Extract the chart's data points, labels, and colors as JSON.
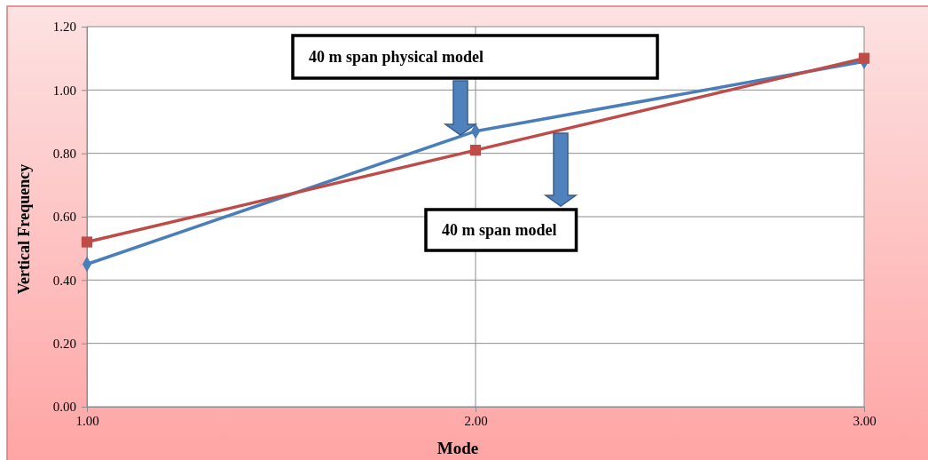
{
  "chart_data": {
    "type": "line",
    "xlabel": "Mode",
    "ylabel": "Vertical Frequency",
    "x": [
      1,
      2,
      3
    ],
    "xlim": [
      1,
      3
    ],
    "xticks": [
      {
        "value": 1,
        "label": "1.00"
      },
      {
        "value": 2,
        "label": "2.00"
      },
      {
        "value": 3,
        "label": "3.00"
      }
    ],
    "ylim": [
      0,
      1.2
    ],
    "yticks": [
      {
        "value": 0,
        "label": "0.00"
      },
      {
        "value": 0.2,
        "label": "0.20"
      },
      {
        "value": 0.4,
        "label": "0.40"
      },
      {
        "value": 0.6,
        "label": "0.60"
      },
      {
        "value": 0.8,
        "label": "0.80"
      },
      {
        "value": 1.0,
        "label": "1.00"
      },
      {
        "value": 1.2,
        "label": "1.20"
      }
    ],
    "grid": true,
    "series": [
      {
        "color": "#4a7ebb",
        "marker": "diamond",
        "values": [
          0.45,
          0.87,
          1.09
        ]
      },
      {
        "color": "#be4b48",
        "marker": "square",
        "values": [
          0.52,
          0.81,
          1.1
        ]
      }
    ],
    "annotations": [
      "40 m span physical model",
      "40 m span model"
    ]
  }
}
